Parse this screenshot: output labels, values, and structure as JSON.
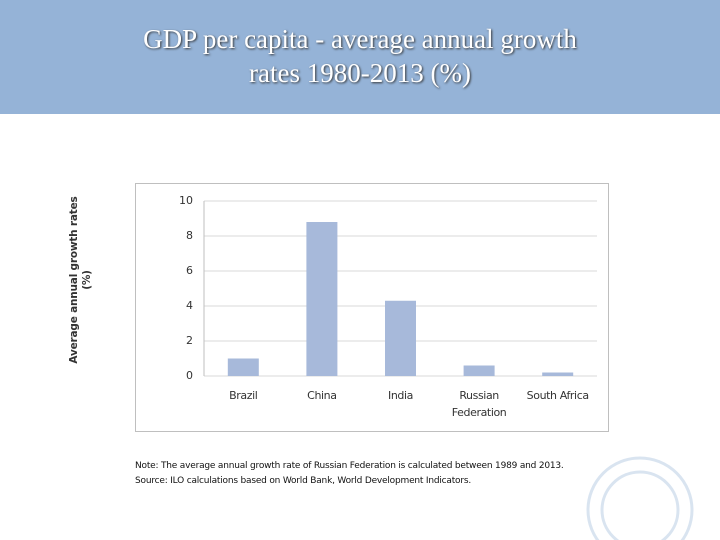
{
  "header": {
    "title": "GDP per capita - average annual growth rates 1980-2013 (%)"
  },
  "chart_data": {
    "type": "bar",
    "y_label": "Average annual growth rates (%)",
    "categories": [
      "Brazil",
      "China",
      "India",
      "Russian Federation",
      "South Africa"
    ],
    "values": [
      1.0,
      8.8,
      4.3,
      0.6,
      0.2
    ],
    "color": "#a7b9da",
    "ylim": [
      0,
      10
    ],
    "yticks": [
      0,
      2,
      4,
      6,
      8,
      10
    ],
    "grid": true
  },
  "notes": [
    "Note: The average annual growth rate of Russian Federation is calculated between 1989 and 2013.",
    "Source: ILO calculations based on World Bank, World Development Indicators."
  ]
}
